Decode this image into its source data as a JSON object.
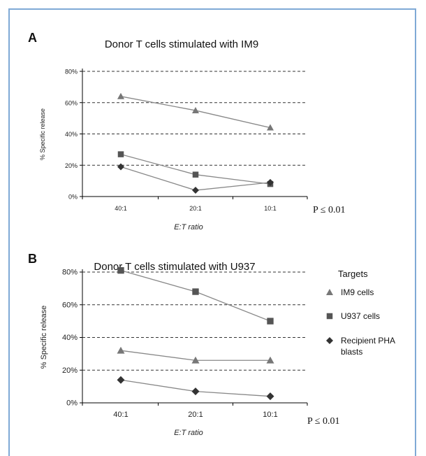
{
  "chart_data": [
    {
      "type": "line",
      "panel_label": "A",
      "title": "Donor T cells stimulated with IM9",
      "xlabel": "E:T ratio",
      "ylabel": "% Specific release",
      "categories": [
        "40:1",
        "20:1",
        "10:1"
      ],
      "ylim": [
        0,
        80
      ],
      "yticks": [
        "0%",
        "20%",
        "40%",
        "60%",
        "80%"
      ],
      "grid": "horizontal dashed",
      "annotation": "P ≤ 0.01",
      "series": [
        {
          "name": "IM9 cells",
          "marker": "triangle",
          "values": [
            64,
            55,
            44
          ]
        },
        {
          "name": "U937 cells",
          "marker": "square",
          "values": [
            27,
            14,
            8
          ]
        },
        {
          "name": "Recipient PHA blasts",
          "marker": "diamond",
          "values": [
            19,
            4,
            9
          ]
        }
      ]
    },
    {
      "type": "line",
      "panel_label": "B",
      "title": "Donor T cells stimulated with U937",
      "xlabel": "E:T ratio",
      "ylabel": "% Specific release",
      "categories": [
        "40:1",
        "20:1",
        "10:1"
      ],
      "ylim": [
        0,
        80
      ],
      "yticks": [
        "0%",
        "20%",
        "40%",
        "60%",
        "80%"
      ],
      "grid": "horizontal dashed",
      "annotation": "P ≤ 0.01",
      "legend": {
        "title": "Targets",
        "placement": "right",
        "entries": [
          "IM9 cells",
          "U937 cells",
          "Recipient PHA blasts"
        ]
      },
      "series": [
        {
          "name": "IM9 cells",
          "marker": "triangle",
          "values": [
            32,
            26,
            26
          ]
        },
        {
          "name": "U937 cells",
          "marker": "square",
          "values": [
            81,
            68,
            50
          ]
        },
        {
          "name": "Recipient PHA blasts",
          "marker": "diamond",
          "values": [
            14,
            7,
            4
          ]
        }
      ]
    }
  ],
  "colors": {
    "line": "#888888",
    "triangle": "#777777",
    "square": "#555555",
    "diamond": "#333333",
    "frame": "#7fa9d6"
  }
}
